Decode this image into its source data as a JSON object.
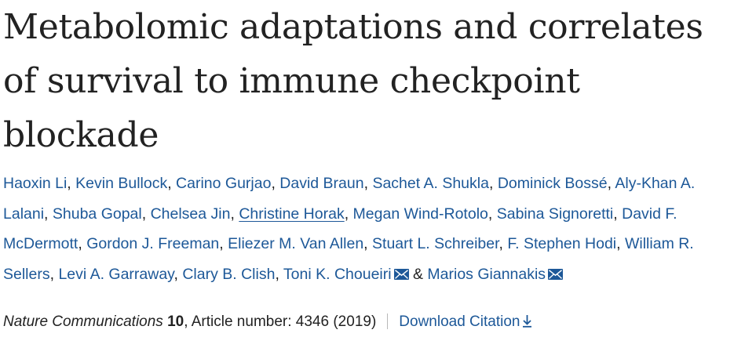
{
  "article": {
    "title": "Metabolomic adaptations and correlates of survival to immune checkpoint blockade"
  },
  "authors": [
    {
      "name": "Haoxin Li",
      "sep": ", "
    },
    {
      "name": "Kevin Bullock",
      "sep": ", "
    },
    {
      "name": "Carino Gurjao",
      "sep": ", "
    },
    {
      "name": "David Braun",
      "sep": ", "
    },
    {
      "name": "Sachet A. Shukla",
      "sep": ", "
    },
    {
      "name": "Dominick Bossé",
      "sep": ", "
    },
    {
      "name": "Aly-Khan A. Lalani",
      "sep": ", "
    },
    {
      "name": "Shuba Gopal",
      "sep": ", "
    },
    {
      "name": "Chelsea Jin",
      "sep": ", "
    },
    {
      "name": "Christine Horak",
      "sep": ", "
    },
    {
      "name": "Megan Wind-Rotolo",
      "sep": ", "
    },
    {
      "name": "Sabina Signoretti",
      "sep": ", "
    },
    {
      "name": "David F. McDermott",
      "sep": ", "
    },
    {
      "name": "Gordon J. Freeman",
      "sep": ", "
    },
    {
      "name": "Eliezer M. Van Allen",
      "sep": ", "
    },
    {
      "name": "Stuart L. Schreiber",
      "sep": ", "
    },
    {
      "name": "F. Stephen Hodi",
      "sep": ", "
    },
    {
      "name": "William R. Sellers",
      "sep": ", "
    },
    {
      "name": "Levi A. Garraway",
      "sep": ", "
    },
    {
      "name": "Clary B. Clish",
      "sep": ", "
    },
    {
      "name": "Toni K. Choueiri",
      "sep": " & "
    },
    {
      "name": "Marios Giannakis",
      "sep": ""
    }
  ],
  "icons": {
    "email": "email-icon",
    "download": "download-arrow-icon"
  },
  "citation": {
    "journal": "Nature Communications",
    "volume": "10",
    "article_number_label": ", Article number: ",
    "article_number": "4346",
    "year": " (2019)",
    "download_label": "Download Citation"
  },
  "colors": {
    "link": "#1d5898",
    "text": "#222222",
    "divider": "#b8b8b8"
  }
}
